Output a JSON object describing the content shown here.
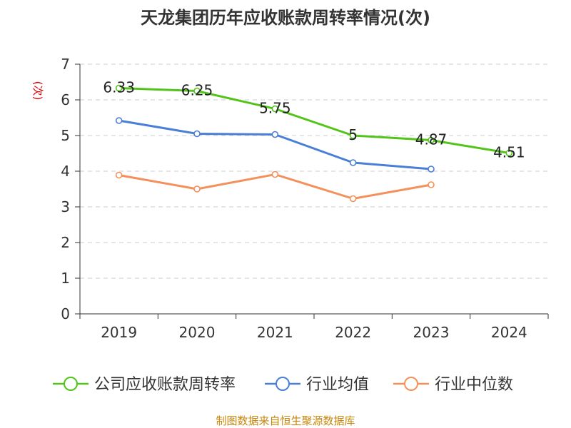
{
  "chart_data": {
    "type": "line",
    "title": "天龙集团历年应收账款周转率情况(次)",
    "ylabel": "(次)",
    "xlabel": "",
    "categories": [
      "2019",
      "2020",
      "2021",
      "2022",
      "2023",
      "2024"
    ],
    "ylim": [
      0,
      7
    ],
    "yticks": [
      0,
      1,
      2,
      3,
      4,
      5,
      6,
      7
    ],
    "grid": true,
    "legend_position": "bottom",
    "series": [
      {
        "name": "公司应收账款周转率",
        "color": "#52c41a",
        "values": [
          6.33,
          6.25,
          5.75,
          5,
          4.87,
          4.51
        ],
        "labels": [
          "6.33",
          "6.25",
          "5.75",
          "5",
          "4.87",
          "4.51"
        ]
      },
      {
        "name": "行业均值",
        "color": "#4a7fd6",
        "values": [
          5.42,
          5.05,
          5.03,
          4.24,
          4.06,
          null
        ]
      },
      {
        "name": "行业中位数",
        "color": "#f4905a",
        "values": [
          3.89,
          3.5,
          3.91,
          3.23,
          3.62,
          null
        ]
      }
    ]
  },
  "source": "制图数据来自恒生聚源数据库"
}
